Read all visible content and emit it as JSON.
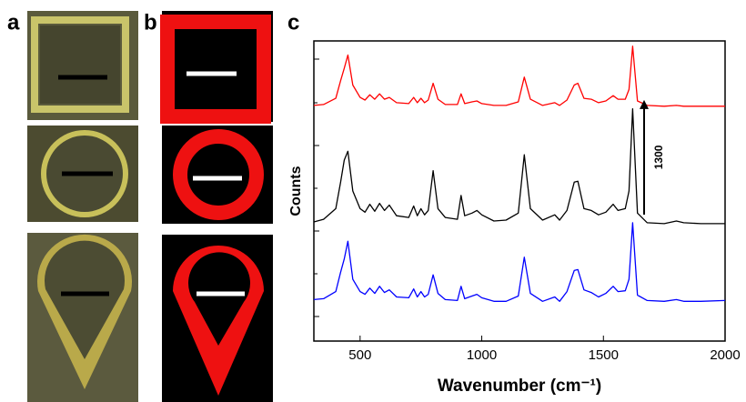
{
  "panel_labels": [
    "a",
    "b",
    "c"
  ],
  "chart_data": {
    "type": "line",
    "x_label": "Wavenumber (cm⁻¹)",
    "y_label": "Counts",
    "scale_bar": {
      "value": 1300,
      "label": "1300"
    },
    "xlim": [
      310,
      2000
    ],
    "xticks": [
      500,
      1000,
      1500,
      2000
    ],
    "ylim": [
      0,
      3400
    ],
    "x": [
      310,
      350,
      400,
      420,
      435,
      450,
      470,
      500,
      520,
      540,
      560,
      580,
      600,
      620,
      650,
      700,
      720,
      735,
      750,
      765,
      780,
      800,
      820,
      850,
      900,
      915,
      930,
      960,
      980,
      1000,
      1050,
      1100,
      1150,
      1175,
      1200,
      1250,
      1300,
      1320,
      1350,
      1380,
      1395,
      1420,
      1450,
      1480,
      1510,
      1540,
      1560,
      1590,
      1605,
      1620,
      1640,
      1680,
      1750,
      1800,
      1830,
      1900,
      2000
    ],
    "series": [
      {
        "color": "#ff0000",
        "values": [
          2670,
          2680,
          2750,
          2950,
          3090,
          3240,
          2900,
          2760,
          2730,
          2790,
          2740,
          2800,
          2740,
          2760,
          2700,
          2690,
          2760,
          2700,
          2750,
          2700,
          2730,
          2920,
          2740,
          2680,
          2680,
          2800,
          2690,
          2710,
          2720,
          2690,
          2670,
          2670,
          2710,
          2990,
          2740,
          2670,
          2700,
          2670,
          2730,
          2900,
          2920,
          2750,
          2740,
          2700,
          2720,
          2780,
          2740,
          2740,
          2850,
          3340,
          2720,
          2670,
          2660,
          2670,
          2660,
          2660,
          2660
        ]
      },
      {
        "color": "#000000",
        "values": [
          1350,
          1380,
          1500,
          1800,
          2050,
          2150,
          1700,
          1500,
          1460,
          1550,
          1470,
          1560,
          1480,
          1540,
          1420,
          1400,
          1530,
          1420,
          1500,
          1430,
          1480,
          1930,
          1500,
          1400,
          1380,
          1650,
          1420,
          1450,
          1480,
          1430,
          1360,
          1370,
          1450,
          2110,
          1500,
          1370,
          1430,
          1370,
          1480,
          1800,
          1810,
          1500,
          1480,
          1430,
          1460,
          1550,
          1480,
          1500,
          1700,
          2630,
          1450,
          1340,
          1330,
          1360,
          1340,
          1330,
          1330
        ]
      },
      {
        "color": "#0000ff",
        "values": [
          470,
          480,
          560,
          780,
          930,
          1130,
          700,
          560,
          530,
          600,
          540,
          620,
          550,
          580,
          500,
          490,
          590,
          500,
          560,
          500,
          530,
          750,
          540,
          470,
          460,
          620,
          480,
          510,
          530,
          490,
          450,
          450,
          510,
          950,
          540,
          450,
          500,
          450,
          560,
          800,
          810,
          580,
          550,
          500,
          540,
          620,
          560,
          570,
          700,
          1340,
          520,
          460,
          450,
          470,
          450,
          450,
          460
        ]
      }
    ]
  }
}
